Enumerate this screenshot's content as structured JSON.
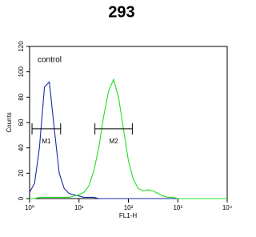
{
  "chart_data": {
    "type": "line",
    "title": "293",
    "xlabel": "FL1-H",
    "ylabel": "Counts",
    "xscale": "log",
    "annotations": [
      "control"
    ],
    "x": [
      1,
      1.26,
      1.58,
      2,
      2.51,
      3.16,
      3.98,
      5.01,
      6.31,
      7.94,
      10,
      12.6,
      15.8,
      20,
      25.1,
      31.6,
      39.8,
      50.1,
      63.1,
      79.4,
      100,
      126,
      158,
      200,
      251,
      316,
      398,
      501,
      631,
      794,
      1000,
      1260,
      1585,
      2000,
      2512,
      3162,
      3981,
      5012,
      6310,
      7943,
      10000
    ],
    "series": [
      {
        "name": "control",
        "color": "#1a2aa8",
        "values": [
          5,
          12,
          40,
          88,
          92,
          55,
          20,
          8,
          4,
          3,
          2,
          1,
          1,
          1,
          0,
          0,
          0,
          0,
          0,
          0,
          0,
          0,
          0,
          0,
          0,
          0,
          0,
          0,
          0,
          0,
          0,
          0,
          0,
          0,
          0,
          0,
          0,
          0,
          0,
          0,
          0
        ]
      },
      {
        "name": "293",
        "color": "#22dd22",
        "values": [
          0,
          0,
          1,
          1,
          1,
          1,
          1,
          1,
          1,
          2,
          3,
          5,
          10,
          22,
          40,
          65,
          85,
          94,
          80,
          55,
          30,
          15,
          8,
          6,
          7,
          6,
          4,
          2,
          1,
          1,
          0,
          0,
          0,
          0,
          0,
          0,
          0,
          0,
          0,
          0,
          0
        ]
      }
    ],
    "gates": [
      {
        "label": "M1",
        "range": [
          1.12,
          4.25
        ],
        "y": 55
      },
      {
        "label": "M2",
        "range": [
          21,
          120
        ],
        "y": 55
      }
    ],
    "xlim": [
      1,
      10000
    ],
    "xticks": [
      {
        "value": 1,
        "label": "10⁰"
      },
      {
        "value": 10,
        "label": "10¹"
      },
      {
        "value": 100,
        "label": "10²"
      },
      {
        "value": 1000,
        "label": "10³"
      },
      {
        "value": 10000,
        "label": "10⁴"
      }
    ],
    "ylim": [
      0,
      120
    ],
    "yticks": [
      0,
      20,
      40,
      60,
      80,
      100,
      120
    ]
  }
}
